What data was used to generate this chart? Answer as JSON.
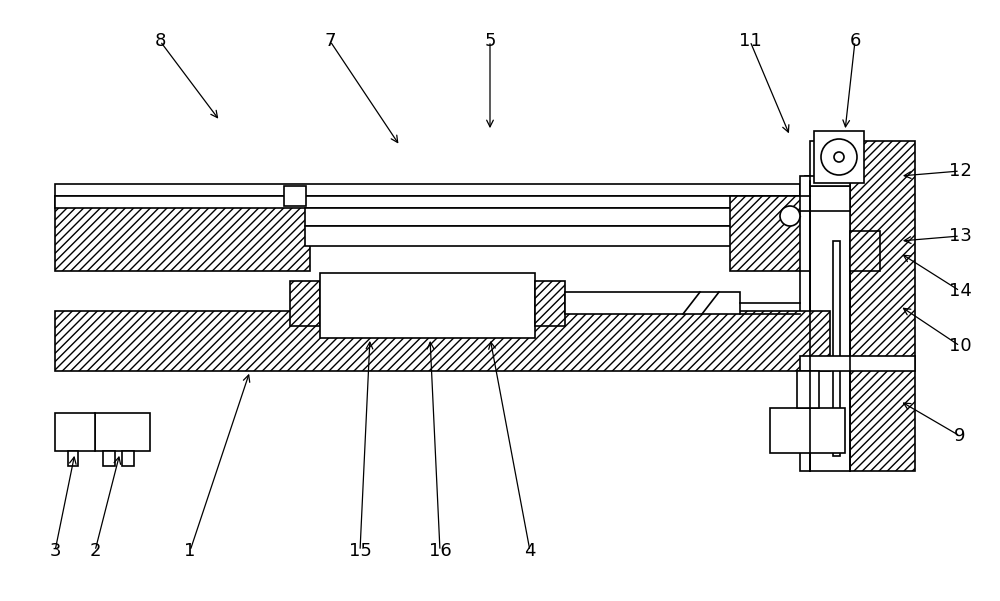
{
  "bg_color": "#ffffff",
  "line_color": "#000000",
  "fig_width": 10.0,
  "fig_height": 6.01,
  "lw": 1.2
}
